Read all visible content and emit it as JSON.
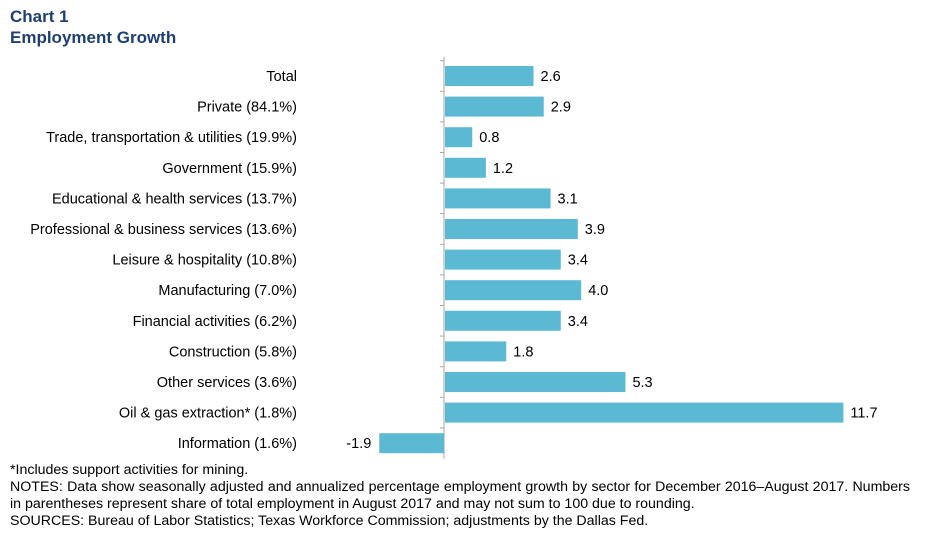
{
  "title": "Chart 1",
  "subtitle": "Employment Growth",
  "chart_data": {
    "type": "bar",
    "orientation": "horizontal",
    "categories": [
      "Total",
      "Private (84.1%)",
      "Trade, transportation & utilities (19.9%)",
      "Government (15.9%)",
      "Educational & health services (13.7%)",
      "Professional & business services (13.6%)",
      "Leisure & hospitality (10.8%)",
      "Manufacturing (7.0%)",
      "Financial activities (6.2%)",
      "Construction (5.8%)",
      "Other services (3.6%)",
      "Oil & gas extraction* (1.8%)",
      "Information (1.6%)"
    ],
    "values": [
      2.6,
      2.9,
      0.8,
      1.2,
      3.1,
      3.9,
      3.4,
      4.0,
      3.4,
      1.8,
      5.3,
      11.7,
      -1.9
    ],
    "value_labels": [
      "2.6",
      "2.9",
      "0.8",
      "1.2",
      "3.1",
      "3.9",
      "3.4",
      "4.0",
      "3.4",
      "1.8",
      "5.3",
      "11.7",
      "-1.9"
    ],
    "xlim": [
      -1.9,
      11.7
    ],
    "bar_color": "#5bb9d4",
    "grid": false,
    "legend": "none"
  },
  "notes": {
    "footnote": "*Includes support activities for mining.",
    "notes": "NOTES: Data show seasonally adjusted and annualized percentage employment growth by sector for December 2016–August 2017. Numbers in parentheses represent share of total employment in August 2017 and may not sum to 100 due to rounding.",
    "sources": "SOURCES: Bureau of Labor Statistics; Texas Workforce Commission; adjustments by the Dallas Fed."
  }
}
